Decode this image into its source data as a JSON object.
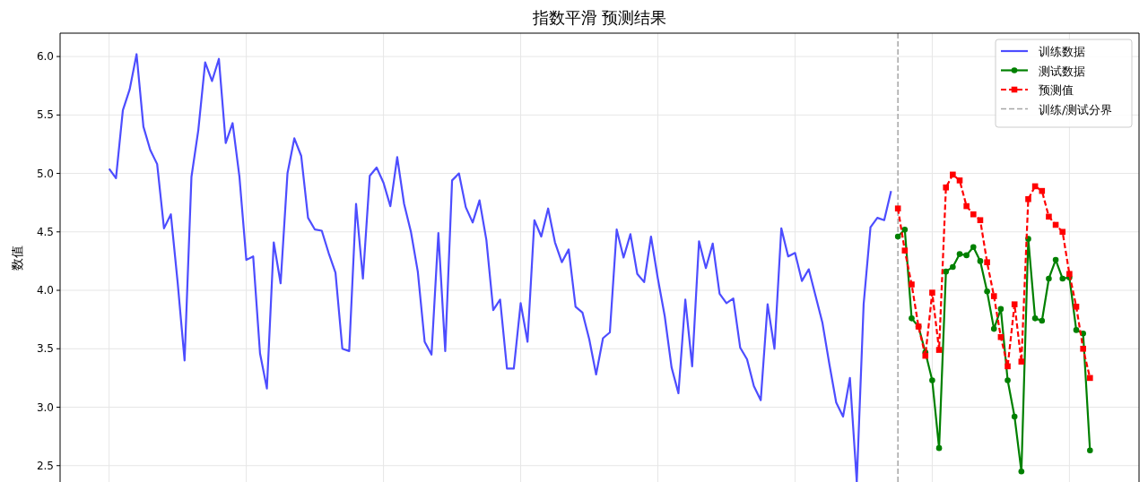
{
  "chart_data": {
    "type": "line",
    "title": "指数平滑 预测结果",
    "ylabel": "数值",
    "categories": [
      null,
      null,
      null,
      null,
      null,
      null,
      null,
      null,
      null,
      null,
      null,
      null,
      null,
      null,
      null,
      null,
      null,
      null,
      null,
      null,
      null,
      null,
      null,
      null,
      null,
      null,
      null,
      null,
      null,
      null,
      null,
      null,
      null,
      null,
      null,
      null,
      null,
      null,
      null,
      null,
      null,
      null,
      null,
      null,
      null,
      null,
      null,
      null,
      null,
      null,
      null,
      null,
      null,
      null,
      null,
      null,
      null,
      null,
      null,
      null,
      null,
      null,
      null,
      null,
      null,
      null,
      null,
      null,
      null,
      null,
      null,
      null,
      null,
      null,
      null,
      null,
      null,
      null,
      null,
      null,
      null,
      null,
      null,
      null,
      null,
      null,
      null,
      null,
      null,
      null,
      null,
      null,
      null,
      null,
      null,
      null,
      null,
      null,
      null,
      null,
      null,
      null,
      null,
      null,
      null,
      null,
      null,
      null,
      null,
      null,
      null,
      null,
      null,
      null,
      null,
      null,
      null,
      null,
      null,
      null,
      null,
      null,
      null,
      null,
      null,
      null,
      null,
      null,
      null,
      null,
      null,
      null,
      null,
      null,
      null,
      null,
      null,
      null,
      null,
      null,
      null,
      null,
      null,
      null
    ],
    "ylim": [
      2.36,
      6.2
    ],
    "yticks": [
      {
        "value": 2.5,
        "label": "2.5"
      },
      {
        "value": 3.0,
        "label": "3.0"
      },
      {
        "value": 3.5,
        "label": "3.5"
      },
      {
        "value": 4.0,
        "label": "4.0"
      },
      {
        "value": 4.5,
        "label": "4.5"
      },
      {
        "value": 5.0,
        "label": "5.0"
      },
      {
        "value": 5.5,
        "label": "5.5"
      },
      {
        "value": 6.0,
        "label": "6.0"
      }
    ],
    "tick_labels": "y",
    "grid": true,
    "legend": "top right",
    "series": [
      {
        "name": "训练数据",
        "color": "#4d4dff",
        "marker": "none",
        "line_style": "solid",
        "values": [
          5.04,
          4.96,
          5.54,
          5.72,
          6.02,
          5.4,
          5.2,
          5.08,
          4.53,
          4.65,
          4.06,
          3.4,
          4.97,
          5.37,
          5.95,
          5.79,
          5.98,
          5.26,
          5.43,
          4.97,
          4.26,
          4.29,
          3.46,
          3.16,
          4.41,
          4.06,
          5.0,
          5.3,
          5.15,
          4.62,
          4.52,
          4.51,
          4.32,
          4.15,
          3.5,
          3.48,
          4.74,
          4.1,
          4.98,
          5.05,
          4.92,
          4.72,
          5.14,
          4.74,
          4.5,
          4.16,
          3.56,
          3.45,
          4.49,
          3.48,
          4.94,
          5.0,
          4.71,
          4.58,
          4.77,
          4.43,
          3.83,
          3.92,
          3.33,
          3.33,
          3.89,
          3.56,
          4.6,
          4.46,
          4.7,
          4.41,
          4.24,
          4.35,
          3.86,
          3.81,
          3.58,
          3.28,
          3.59,
          3.64,
          4.52,
          4.28,
          4.48,
          4.14,
          4.07,
          4.46,
          4.1,
          3.78,
          3.34,
          3.12,
          3.92,
          3.35,
          4.42,
          4.19,
          4.4,
          3.97,
          3.89,
          3.93,
          3.51,
          3.41,
          3.18,
          3.06,
          3.88,
          3.5,
          4.53,
          4.29,
          4.32,
          4.08,
          4.18,
          3.95,
          3.72,
          3.37,
          3.04,
          2.92,
          3.25,
          2.36,
          3.88,
          4.54,
          4.62,
          4.6,
          4.85,
          null,
          null,
          null,
          null,
          null,
          null,
          null,
          null,
          null,
          null,
          null,
          null,
          null,
          null,
          null,
          null,
          null,
          null,
          null,
          null,
          null,
          null,
          null,
          null,
          null,
          null,
          null,
          null,
          null
        ]
      },
      {
        "name": "测试数据",
        "color": "#008000",
        "marker": "circle",
        "line_style": "solid",
        "values": [
          null,
          null,
          null,
          null,
          null,
          null,
          null,
          null,
          null,
          null,
          null,
          null,
          null,
          null,
          null,
          null,
          null,
          null,
          null,
          null,
          null,
          null,
          null,
          null,
          null,
          null,
          null,
          null,
          null,
          null,
          null,
          null,
          null,
          null,
          null,
          null,
          null,
          null,
          null,
          null,
          null,
          null,
          null,
          null,
          null,
          null,
          null,
          null,
          null,
          null,
          null,
          null,
          null,
          null,
          null,
          null,
          null,
          null,
          null,
          null,
          null,
          null,
          null,
          null,
          null,
          null,
          null,
          null,
          null,
          null,
          null,
          null,
          null,
          null,
          null,
          null,
          null,
          null,
          null,
          null,
          null,
          null,
          null,
          null,
          null,
          null,
          null,
          null,
          null,
          null,
          null,
          null,
          null,
          null,
          null,
          null,
          null,
          null,
          null,
          null,
          null,
          null,
          null,
          null,
          null,
          null,
          null,
          null,
          null,
          null,
          null,
          null,
          null,
          null,
          null,
          4.46,
          4.52,
          3.76,
          3.69,
          3.47,
          3.23,
          2.65,
          4.16,
          4.2,
          4.31,
          4.3,
          4.37,
          4.25,
          3.99,
          3.67,
          3.84,
          3.23,
          2.92,
          2.45,
          4.44,
          3.76,
          3.74,
          4.1,
          4.26,
          4.1,
          4.11,
          3.66,
          3.63,
          2.63
        ]
      },
      {
        "name": "预测值",
        "color": "#ff0000",
        "marker": "square",
        "line_style": "dashed",
        "values": [
          null,
          null,
          null,
          null,
          null,
          null,
          null,
          null,
          null,
          null,
          null,
          null,
          null,
          null,
          null,
          null,
          null,
          null,
          null,
          null,
          null,
          null,
          null,
          null,
          null,
          null,
          null,
          null,
          null,
          null,
          null,
          null,
          null,
          null,
          null,
          null,
          null,
          null,
          null,
          null,
          null,
          null,
          null,
          null,
          null,
          null,
          null,
          null,
          null,
          null,
          null,
          null,
          null,
          null,
          null,
          null,
          null,
          null,
          null,
          null,
          null,
          null,
          null,
          null,
          null,
          null,
          null,
          null,
          null,
          null,
          null,
          null,
          null,
          null,
          null,
          null,
          null,
          null,
          null,
          null,
          null,
          null,
          null,
          null,
          null,
          null,
          null,
          null,
          null,
          null,
          null,
          null,
          null,
          null,
          null,
          null,
          null,
          null,
          null,
          null,
          null,
          null,
          null,
          null,
          null,
          null,
          null,
          null,
          null,
          null,
          null,
          null,
          null,
          null,
          null,
          4.7,
          4.34,
          4.05,
          3.69,
          3.44,
          3.98,
          3.49,
          4.88,
          4.99,
          4.94,
          4.72,
          4.65,
          4.6,
          4.24,
          3.95,
          3.6,
          3.35,
          3.88,
          3.39,
          4.78,
          4.89,
          4.85,
          4.63,
          4.56,
          4.5,
          4.14,
          3.86,
          3.5,
          3.25
        ]
      }
    ],
    "ref_lines": [
      {
        "axis": "x",
        "label": "训练/测试分界",
        "color": "#a6a6a6",
        "line_style": "dashed"
      }
    ]
  }
}
